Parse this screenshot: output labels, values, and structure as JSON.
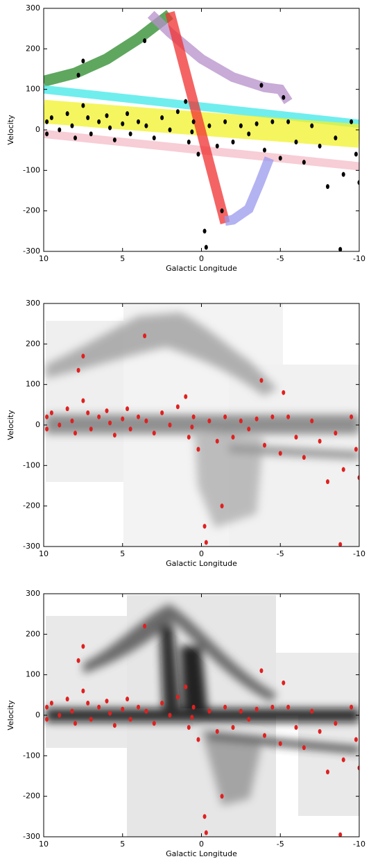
{
  "chart_data": [
    {
      "type": "scatter",
      "xlabel": "Galactic Longitude",
      "ylabel": "Velocity",
      "xlim": [
        10,
        -10
      ],
      "ylim": [
        -300,
        300
      ],
      "xticks": [
        10,
        5,
        0,
        -5,
        -10
      ],
      "yticks": [
        -300,
        -200,
        -100,
        0,
        100,
        200,
        300
      ],
      "series": [
        {
          "type": "line",
          "color": "#2a8a2a",
          "x": [
            10,
            8,
            6,
            4,
            3,
            2
          ],
          "values": [
            120,
            140,
            175,
            225,
            255,
            285
          ]
        },
        {
          "type": "line",
          "color": "#b58fc9",
          "x": [
            3.2,
            2,
            0,
            -2,
            -4,
            -5,
            -5.5
          ],
          "values": [
            285,
            240,
            175,
            130,
            105,
            100,
            70
          ]
        },
        {
          "type": "line",
          "color": "#40e8e8",
          "x": [
            10,
            -10
          ],
          "values": [
            100,
            15
          ]
        },
        {
          "type": "line",
          "color": "#f2f22a",
          "x": [
            10,
            -10
          ],
          "values": [
            45,
            -15
          ]
        },
        {
          "type": "line",
          "color": "#f4bcc8",
          "x": [
            10,
            -10
          ],
          "values": [
            -10,
            -90
          ]
        },
        {
          "type": "line",
          "color": "#f03030",
          "x": [
            2,
            -1.5
          ],
          "values": [
            290,
            -230
          ]
        },
        {
          "type": "line",
          "color": "#9999ee",
          "x": [
            -1.5,
            -2,
            -3,
            -3.7,
            -4.3
          ],
          "values": [
            -225,
            -222,
            -195,
            -130,
            -70
          ]
        },
        {
          "type": "scatter",
          "color": "#000000",
          "x": [
            9.8,
            9.8,
            9.5,
            9,
            8.5,
            8.2,
            8,
            7.8,
            7.5,
            7.5,
            7.2,
            7,
            6.5,
            6,
            5.8,
            5.5,
            5,
            4.7,
            4.5,
            4,
            3.6,
            3.5,
            3,
            2.5,
            2,
            1.5,
            1,
            0.8,
            0.5,
            0.2,
            -0.2,
            -0.3,
            0.6,
            -0.5,
            -1,
            -1.3,
            -1.5,
            -2,
            -2.5,
            -3,
            -3.5,
            -3.8,
            -4,
            -4.5,
            -5,
            -5.2,
            -5.5,
            -6,
            -6.5,
            -7,
            -7.5,
            -8,
            -8.5,
            -8.8,
            -9,
            -9.5,
            -9.8,
            -10
          ],
          "values": [
            20,
            -10,
            30,
            0,
            40,
            10,
            -20,
            135,
            170,
            60,
            30,
            -10,
            20,
            35,
            5,
            -25,
            15,
            40,
            -10,
            20,
            220,
            10,
            -20,
            30,
            0,
            45,
            70,
            -30,
            20,
            -60,
            -250,
            -290,
            -5,
            10,
            -40,
            -200,
            20,
            -30,
            10,
            -10,
            15,
            110,
            -50,
            20,
            -70,
            80,
            20,
            -30,
            -80,
            10,
            -40,
            -140,
            -20,
            -295,
            -110,
            20,
            -60,
            -130
          ]
        }
      ]
    },
    {
      "type": "scatter",
      "xlabel": "Galactic Longitude",
      "ylabel": "Velocity",
      "xlim": [
        10,
        -10
      ],
      "ylim": [
        -300,
        300
      ],
      "xticks": [
        10,
        5,
        0,
        -5,
        -10
      ],
      "yticks": [
        -300,
        -200,
        -100,
        0,
        100,
        200,
        300
      ],
      "series": [
        {
          "type": "scatter",
          "color": "#e02020",
          "x": [
            9.8,
            9.8,
            9.5,
            9,
            8.5,
            8.2,
            8,
            7.8,
            7.5,
            7.5,
            7.2,
            7,
            6.5,
            6,
            5.8,
            5.5,
            5,
            4.7,
            4.5,
            4,
            3.6,
            3.5,
            3,
            2.5,
            2,
            1.5,
            1,
            0.8,
            0.5,
            0.2,
            -0.2,
            -0.3,
            0.6,
            -0.5,
            -1,
            -1.3,
            -1.5,
            -2,
            -2.5,
            -3,
            -3.5,
            -3.8,
            -4,
            -4.5,
            -5,
            -5.2,
            -5.5,
            -6,
            -6.5,
            -7,
            -7.5,
            -8,
            -8.5,
            -8.8,
            -9,
            -9.5,
            -9.8,
            -10
          ],
          "values": [
            20,
            -10,
            30,
            0,
            40,
            10,
            -20,
            135,
            170,
            60,
            30,
            -10,
            20,
            35,
            5,
            -25,
            15,
            40,
            -10,
            20,
            220,
            10,
            -20,
            30,
            0,
            45,
            70,
            -30,
            20,
            -60,
            -250,
            -290,
            -5,
            10,
            -40,
            -200,
            20,
            -30,
            10,
            -10,
            15,
            110,
            -50,
            20,
            -70,
            80,
            20,
            -30,
            -80,
            10,
            -40,
            -140,
            -20,
            -295,
            -110,
            20,
            -60,
            -130
          ]
        }
      ]
    },
    {
      "type": "scatter",
      "xlabel": "Galactic Longitude",
      "ylabel": "Velocity",
      "xlim": [
        10,
        -10
      ],
      "ylim": [
        -300,
        300
      ],
      "xticks": [
        10,
        5,
        0,
        -5,
        -10
      ],
      "yticks": [
        -300,
        -200,
        -100,
        0,
        100,
        200,
        300
      ],
      "series": [
        {
          "type": "scatter",
          "color": "#e02020",
          "x": [
            9.8,
            9.8,
            9.5,
            9,
            8.5,
            8.2,
            8,
            7.8,
            7.5,
            7.5,
            7.2,
            7,
            6.5,
            6,
            5.8,
            5.5,
            5,
            4.7,
            4.5,
            4,
            3.6,
            3.5,
            3,
            2.5,
            2,
            1.5,
            1,
            0.8,
            0.5,
            0.2,
            -0.2,
            -0.3,
            0.6,
            -0.5,
            -1,
            -1.3,
            -1.5,
            -2,
            -2.5,
            -3,
            -3.5,
            -3.8,
            -4,
            -4.5,
            -5,
            -5.2,
            -5.5,
            -6,
            -6.5,
            -7,
            -7.5,
            -8,
            -8.5,
            -8.8,
            -9,
            -9.5,
            -9.8,
            -10
          ],
          "values": [
            20,
            -10,
            30,
            0,
            40,
            10,
            -20,
            135,
            170,
            60,
            30,
            -10,
            20,
            35,
            5,
            -25,
            15,
            40,
            -10,
            20,
            220,
            10,
            -20,
            30,
            0,
            45,
            70,
            -30,
            20,
            -60,
            -250,
            -290,
            -5,
            10,
            -40,
            -200,
            20,
            -30,
            10,
            -10,
            15,
            110,
            -50,
            20,
            -70,
            80,
            20,
            -30,
            -80,
            10,
            -40,
            -140,
            -20,
            -295,
            -110,
            20,
            -60,
            -130
          ]
        }
      ]
    }
  ]
}
